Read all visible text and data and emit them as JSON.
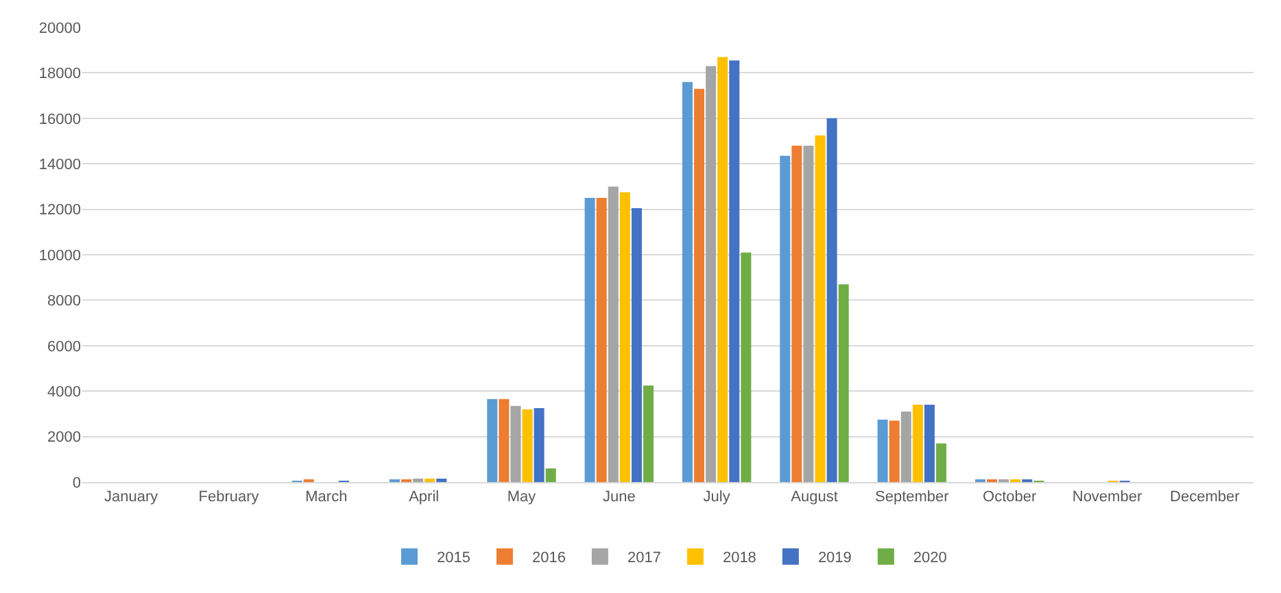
{
  "chart_data": {
    "type": "bar",
    "categories": [
      "January",
      "February",
      "March",
      "April",
      "May",
      "June",
      "July",
      "August",
      "September",
      "October",
      "November",
      "December"
    ],
    "series": [
      {
        "name": "2015",
        "color": "#5b9bd5",
        "values": [
          0,
          0,
          50,
          100,
          3650,
          12500,
          17600,
          14350,
          2750,
          80,
          0,
          0
        ]
      },
      {
        "name": "2016",
        "color": "#ed7d31",
        "values": [
          0,
          0,
          80,
          100,
          3650,
          12500,
          17300,
          14800,
          2700,
          80,
          0,
          0
        ]
      },
      {
        "name": "2017",
        "color": "#a5a5a5",
        "values": [
          0,
          0,
          0,
          150,
          3350,
          13000,
          18300,
          14800,
          3100,
          80,
          0,
          0
        ]
      },
      {
        "name": "2018",
        "color": "#ffc000",
        "values": [
          0,
          0,
          0,
          150,
          3200,
          12750,
          18700,
          15250,
          3400,
          100,
          60,
          0
        ]
      },
      {
        "name": "2019",
        "color": "#4472c4",
        "values": [
          0,
          0,
          50,
          150,
          3250,
          12050,
          18550,
          16000,
          3400,
          80,
          60,
          0
        ]
      },
      {
        "name": "2020",
        "color": "#70ad47",
        "values": [
          0,
          0,
          0,
          0,
          600,
          4250,
          10100,
          8700,
          1700,
          50,
          0,
          0
        ]
      }
    ],
    "ylim": [
      0,
      20000
    ],
    "yticks": [
      0,
      2000,
      4000,
      6000,
      8000,
      10000,
      12000,
      14000,
      16000,
      18000,
      20000
    ],
    "grid": "y",
    "legend": "bottom"
  }
}
